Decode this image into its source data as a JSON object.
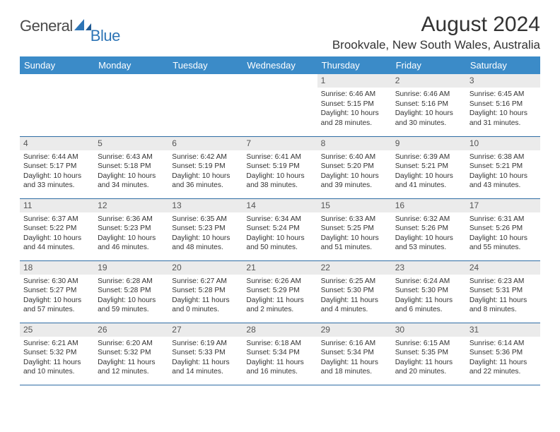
{
  "logo": {
    "word1": "General",
    "word2": "Blue"
  },
  "title": "August 2024",
  "location": "Brookvale, New South Wales, Australia",
  "colors": {
    "header_bg": "#3b8bc8",
    "header_text": "#ffffff",
    "daynum_bg": "#ebebeb",
    "border": "#2e6ca4",
    "logo_gray": "#4a4a4a",
    "logo_blue": "#2e75b6"
  },
  "weekdays": [
    "Sunday",
    "Monday",
    "Tuesday",
    "Wednesday",
    "Thursday",
    "Friday",
    "Saturday"
  ],
  "weeks": [
    [
      null,
      null,
      null,
      null,
      {
        "n": "1",
        "sr": "6:46 AM",
        "ss": "5:15 PM",
        "dh": "10",
        "dm": "28"
      },
      {
        "n": "2",
        "sr": "6:46 AM",
        "ss": "5:16 PM",
        "dh": "10",
        "dm": "30"
      },
      {
        "n": "3",
        "sr": "6:45 AM",
        "ss": "5:16 PM",
        "dh": "10",
        "dm": "31"
      }
    ],
    [
      {
        "n": "4",
        "sr": "6:44 AM",
        "ss": "5:17 PM",
        "dh": "10",
        "dm": "33"
      },
      {
        "n": "5",
        "sr": "6:43 AM",
        "ss": "5:18 PM",
        "dh": "10",
        "dm": "34"
      },
      {
        "n": "6",
        "sr": "6:42 AM",
        "ss": "5:19 PM",
        "dh": "10",
        "dm": "36"
      },
      {
        "n": "7",
        "sr": "6:41 AM",
        "ss": "5:19 PM",
        "dh": "10",
        "dm": "38"
      },
      {
        "n": "8",
        "sr": "6:40 AM",
        "ss": "5:20 PM",
        "dh": "10",
        "dm": "39"
      },
      {
        "n": "9",
        "sr": "6:39 AM",
        "ss": "5:21 PM",
        "dh": "10",
        "dm": "41"
      },
      {
        "n": "10",
        "sr": "6:38 AM",
        "ss": "5:21 PM",
        "dh": "10",
        "dm": "43"
      }
    ],
    [
      {
        "n": "11",
        "sr": "6:37 AM",
        "ss": "5:22 PM",
        "dh": "10",
        "dm": "44"
      },
      {
        "n": "12",
        "sr": "6:36 AM",
        "ss": "5:23 PM",
        "dh": "10",
        "dm": "46"
      },
      {
        "n": "13",
        "sr": "6:35 AM",
        "ss": "5:23 PM",
        "dh": "10",
        "dm": "48"
      },
      {
        "n": "14",
        "sr": "6:34 AM",
        "ss": "5:24 PM",
        "dh": "10",
        "dm": "50"
      },
      {
        "n": "15",
        "sr": "6:33 AM",
        "ss": "5:25 PM",
        "dh": "10",
        "dm": "51"
      },
      {
        "n": "16",
        "sr": "6:32 AM",
        "ss": "5:26 PM",
        "dh": "10",
        "dm": "53"
      },
      {
        "n": "17",
        "sr": "6:31 AM",
        "ss": "5:26 PM",
        "dh": "10",
        "dm": "55"
      }
    ],
    [
      {
        "n": "18",
        "sr": "6:30 AM",
        "ss": "5:27 PM",
        "dh": "10",
        "dm": "57"
      },
      {
        "n": "19",
        "sr": "6:28 AM",
        "ss": "5:28 PM",
        "dh": "10",
        "dm": "59"
      },
      {
        "n": "20",
        "sr": "6:27 AM",
        "ss": "5:28 PM",
        "dh": "11",
        "dm": "0"
      },
      {
        "n": "21",
        "sr": "6:26 AM",
        "ss": "5:29 PM",
        "dh": "11",
        "dm": "2"
      },
      {
        "n": "22",
        "sr": "6:25 AM",
        "ss": "5:30 PM",
        "dh": "11",
        "dm": "4"
      },
      {
        "n": "23",
        "sr": "6:24 AM",
        "ss": "5:30 PM",
        "dh": "11",
        "dm": "6"
      },
      {
        "n": "24",
        "sr": "6:23 AM",
        "ss": "5:31 PM",
        "dh": "11",
        "dm": "8"
      }
    ],
    [
      {
        "n": "25",
        "sr": "6:21 AM",
        "ss": "5:32 PM",
        "dh": "11",
        "dm": "10"
      },
      {
        "n": "26",
        "sr": "6:20 AM",
        "ss": "5:32 PM",
        "dh": "11",
        "dm": "12"
      },
      {
        "n": "27",
        "sr": "6:19 AM",
        "ss": "5:33 PM",
        "dh": "11",
        "dm": "14"
      },
      {
        "n": "28",
        "sr": "6:18 AM",
        "ss": "5:34 PM",
        "dh": "11",
        "dm": "16"
      },
      {
        "n": "29",
        "sr": "6:16 AM",
        "ss": "5:34 PM",
        "dh": "11",
        "dm": "18"
      },
      {
        "n": "30",
        "sr": "6:15 AM",
        "ss": "5:35 PM",
        "dh": "11",
        "dm": "20"
      },
      {
        "n": "31",
        "sr": "6:14 AM",
        "ss": "5:36 PM",
        "dh": "11",
        "dm": "22"
      }
    ]
  ]
}
